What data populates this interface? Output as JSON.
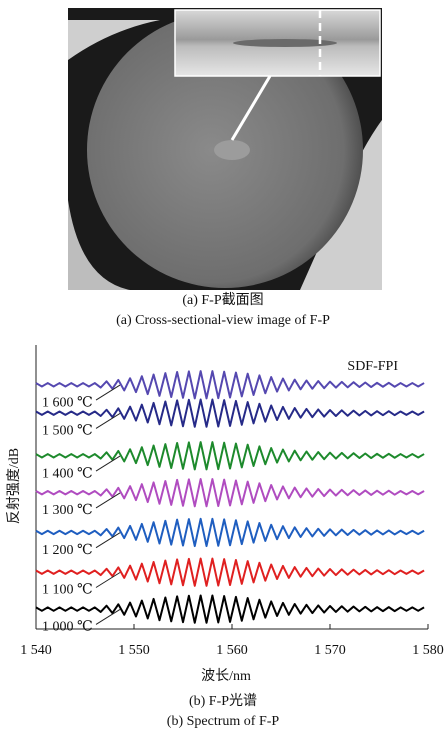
{
  "figure": {
    "caption_a_cn": "(a) F-P截面图",
    "caption_a_en": "(a) Cross-sectional-view image of F-P",
    "caption_b_cn": "(b) F-P光谱",
    "caption_b_en": "(b) Spectrum of F-P"
  },
  "chart_data": {
    "type": "line",
    "annotation": "SDF-FPI",
    "x_label": "波长/nm",
    "y_label": "反射强度/dB",
    "xlim": [
      1540,
      1580
    ],
    "ylim": [
      0,
      100
    ],
    "xticks": [
      {
        "value": 1540,
        "label": "1 540"
      },
      {
        "value": 1550,
        "label": "1 550"
      },
      {
        "value": 1560,
        "label": "1 560"
      },
      {
        "value": 1570,
        "label": "1 570"
      },
      {
        "value": 1580,
        "label": "1 580"
      }
    ],
    "x": [
      1540,
      1540.6,
      1541.2,
      1541.8,
      1542.4,
      1543,
      1543.6,
      1544.2,
      1544.8,
      1545.4,
      1546,
      1546.6,
      1547.2,
      1547.8,
      1548.4,
      1549,
      1549.6,
      1550.2,
      1550.8,
      1551.4,
      1552,
      1552.6,
      1553.2,
      1553.8,
      1554.4,
      1555,
      1555.6,
      1556.2,
      1556.8,
      1557.4,
      1558,
      1558.6,
      1559.2,
      1559.8,
      1560.4,
      1561,
      1561.6,
      1562.2,
      1562.8,
      1563.4,
      1564,
      1564.6,
      1565.2,
      1565.8,
      1566.4,
      1567,
      1567.6,
      1568.2,
      1568.8,
      1569.4,
      1570,
      1570.6,
      1571.2,
      1571.8,
      1572.4,
      1573,
      1573.6,
      1574.2,
      1574.8,
      1575.4,
      1576,
      1576.6,
      1577.2,
      1577.8,
      1578.4,
      1579,
      1579.6
    ],
    "series": [
      {
        "name": "1 600 ℃",
        "color": "#5548b0",
        "values": [
          86.6,
          85.4,
          86.6,
          85.4,
          86.6,
          85.4,
          86.6,
          85.4,
          86.6,
          85.4,
          86.6,
          85,
          87.2,
          84.6,
          87.7,
          84,
          88.3,
          83.4,
          89,
          82.7,
          89.6,
          82.1,
          90.1,
          81.7,
          90.5,
          81.4,
          90.7,
          81.2,
          90.8,
          81.2,
          90.8,
          81.3,
          90.6,
          81.5,
          90.3,
          81.9,
          89.9,
          82.4,
          89.3,
          83,
          88.7,
          83.6,
          88.2,
          84,
          87.8,
          84.4,
          87.5,
          84.6,
          87.3,
          84.8,
          87.1,
          85,
          87,
          85.1,
          86.9,
          85.2,
          86.8,
          85.2,
          86.7,
          85.3,
          86.7,
          85.3,
          86.6,
          85.4,
          86.6,
          85.4,
          86.6
        ]
      },
      {
        "name": "1 500 ℃",
        "color": "#262a88",
        "values": [
          76.6,
          75.4,
          76.6,
          75.4,
          76.6,
          75.4,
          76.6,
          75.4,
          76.6,
          75.4,
          76.6,
          75,
          77.2,
          74.6,
          77.7,
          74,
          78.3,
          73.4,
          79,
          72.7,
          79.6,
          72.1,
          80.1,
          71.7,
          80.5,
          71.4,
          80.7,
          71.2,
          80.8,
          71.2,
          80.8,
          71.3,
          80.6,
          71.5,
          80.3,
          71.9,
          79.9,
          72.4,
          79.3,
          73,
          78.7,
          73.6,
          78.2,
          74,
          77.8,
          74.4,
          77.5,
          74.6,
          77.3,
          74.8,
          77.1,
          75,
          77,
          75.1,
          76.9,
          75.2,
          76.8,
          75.2,
          76.7,
          75.3,
          76.7,
          75.3,
          76.6,
          75.4,
          76.6,
          75.4,
          76.6
        ]
      },
      {
        "name": "1 400 ℃",
        "color": "#1d8a2c",
        "values": [
          61.6,
          60.4,
          61.6,
          60.4,
          61.6,
          60.4,
          61.6,
          60.4,
          61.6,
          60.4,
          61.6,
          60,
          62.2,
          59.6,
          62.7,
          59,
          63.3,
          58.4,
          64,
          57.7,
          64.6,
          57.1,
          65.1,
          56.7,
          65.5,
          56.4,
          65.7,
          56.2,
          65.8,
          56.2,
          65.8,
          56.3,
          65.6,
          56.5,
          65.3,
          56.9,
          64.9,
          57.4,
          64.3,
          58,
          63.7,
          58.6,
          63.2,
          59,
          62.8,
          59.4,
          62.5,
          59.6,
          62.3,
          59.8,
          62.1,
          60,
          62,
          60.1,
          61.9,
          60.2,
          61.8,
          60.2,
          61.7,
          60.3,
          61.7,
          60.3,
          61.6,
          60.4,
          61.6,
          60.4,
          61.6
        ]
      },
      {
        "name": "1 300 ℃",
        "color": "#b04cc0",
        "values": [
          48.6,
          47.4,
          48.6,
          47.4,
          48.6,
          47.4,
          48.6,
          47.4,
          48.6,
          47.4,
          48.6,
          47,
          49.2,
          46.6,
          49.7,
          46,
          50.3,
          45.4,
          51,
          44.7,
          51.6,
          44.1,
          52.1,
          43.7,
          52.5,
          43.4,
          52.7,
          43.2,
          52.8,
          43.2,
          52.8,
          43.3,
          52.6,
          43.5,
          52.3,
          43.9,
          51.9,
          44.4,
          51.3,
          45,
          50.7,
          45.6,
          50.2,
          46,
          49.8,
          46.4,
          49.5,
          46.6,
          49.3,
          46.8,
          49.1,
          47,
          49,
          47.1,
          48.9,
          47.2,
          48.8,
          47.2,
          48.7,
          47.3,
          48.7,
          47.3,
          48.6,
          47.4,
          48.6,
          47.4,
          48.6
        ]
      },
      {
        "name": "1 200 ℃",
        "color": "#1f5ec0",
        "values": [
          34.6,
          33.4,
          34.6,
          33.4,
          34.6,
          33.4,
          34.6,
          33.4,
          34.6,
          33.4,
          34.6,
          33,
          35.2,
          32.6,
          35.7,
          32,
          36.3,
          31.4,
          37,
          30.7,
          37.6,
          30.1,
          38.1,
          29.7,
          38.5,
          29.4,
          38.7,
          29.2,
          38.8,
          29.2,
          38.8,
          29.3,
          38.6,
          29.5,
          38.3,
          29.9,
          37.9,
          30.4,
          37.3,
          31,
          36.7,
          31.6,
          36.2,
          32,
          35.8,
          32.4,
          35.5,
          32.6,
          35.3,
          32.8,
          35.1,
          33,
          35,
          33.1,
          34.9,
          33.2,
          34.8,
          33.2,
          34.7,
          33.3,
          34.7,
          33.3,
          34.6,
          33.4,
          34.6,
          33.4,
          34.6
        ]
      },
      {
        "name": "1 100 ℃",
        "color": "#e02020",
        "values": [
          20.6,
          19.4,
          20.6,
          19.4,
          20.6,
          19.4,
          20.6,
          19.4,
          20.6,
          19.4,
          20.6,
          19,
          21.2,
          18.6,
          21.7,
          18,
          22.3,
          17.4,
          23,
          16.7,
          23.6,
          16.1,
          24.1,
          15.7,
          24.5,
          15.4,
          24.7,
          15.2,
          24.8,
          15.2,
          24.8,
          15.3,
          24.6,
          15.5,
          24.3,
          15.9,
          23.9,
          16.4,
          23.3,
          17,
          22.7,
          17.6,
          22.2,
          18,
          21.8,
          18.4,
          21.5,
          18.6,
          21.3,
          18.8,
          21.1,
          19,
          21,
          19.1,
          20.9,
          19.2,
          20.8,
          19.2,
          20.7,
          19.3,
          20.7,
          19.3,
          20.6,
          19.4,
          20.6,
          19.4,
          20.6
        ]
      },
      {
        "name": "1 000 ℃",
        "color": "#000000",
        "values": [
          7.6,
          6.4,
          7.6,
          6.4,
          7.6,
          6.4,
          7.6,
          6.4,
          7.6,
          6.4,
          7.6,
          6,
          8.2,
          5.6,
          8.7,
          5,
          9.3,
          4.4,
          10,
          3.7,
          10.6,
          3.1,
          11.1,
          2.7,
          11.5,
          2.4,
          11.7,
          2.2,
          11.8,
          2.2,
          11.8,
          2.3,
          11.6,
          2.5,
          11.3,
          2.9,
          10.9,
          3.4,
          10.3,
          4,
          9.7,
          4.6,
          9.2,
          5,
          8.8,
          5.4,
          8.5,
          5.6,
          8.3,
          5.8,
          8.1,
          6,
          8,
          6.1,
          7.9,
          6.2,
          7.8,
          6.2,
          7.7,
          6.3,
          7.7,
          6.3,
          7.6,
          6.4,
          7.6,
          6.4,
          7.6
        ]
      }
    ]
  }
}
